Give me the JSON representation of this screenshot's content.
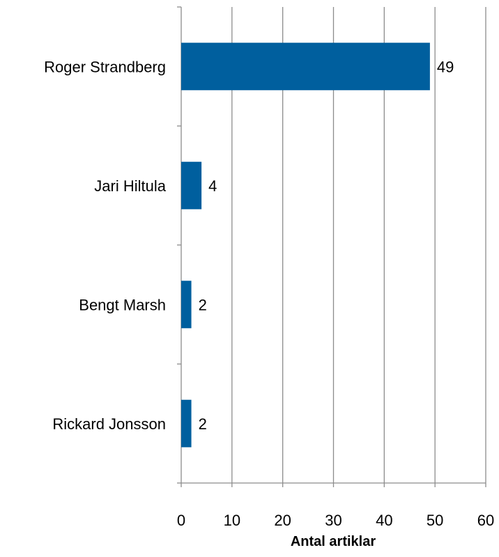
{
  "chart_data": {
    "type": "bar",
    "orientation": "horizontal",
    "categories": [
      "Roger Strandberg",
      "Jari Hiltula",
      "Bengt Marsh",
      "Rickard Jonsson"
    ],
    "values": [
      49,
      4,
      2,
      2
    ],
    "data_labels": [
      "49",
      "4",
      "2",
      "2"
    ],
    "xlabel": "Antal artiklar",
    "ylabel": "",
    "xlim": [
      0,
      60
    ],
    "x_ticks": [
      0,
      10,
      20,
      30,
      40,
      50,
      60
    ],
    "x_tick_labels": [
      "0",
      "10",
      "20",
      "30",
      "40",
      "50",
      "60"
    ],
    "grid": "vertical",
    "legend": "none",
    "bar_color": "#005f9e",
    "grid_color": "#8c8c8c"
  }
}
